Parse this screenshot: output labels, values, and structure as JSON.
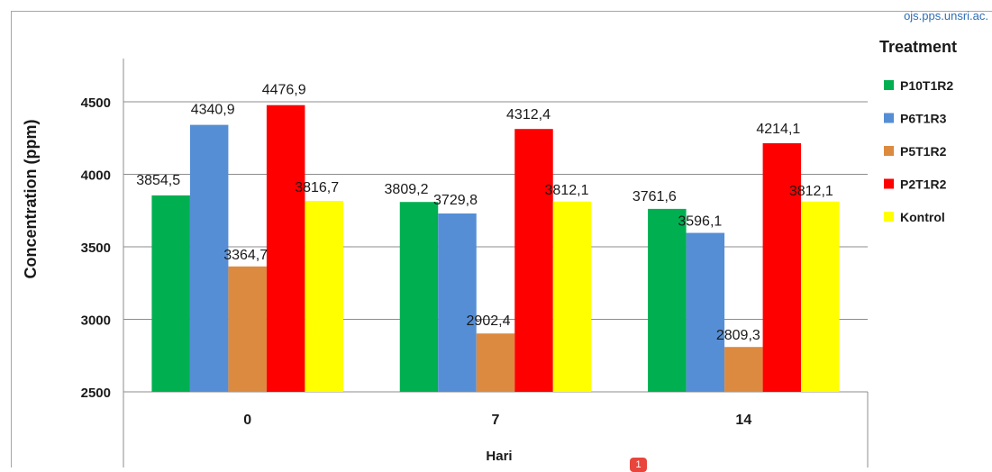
{
  "watermark": "ojs.pps.unsri.ac.",
  "badge": "1",
  "chart_data": {
    "type": "bar",
    "categories": [
      "0",
      "7",
      "14"
    ],
    "xlabel": "Hari",
    "ylabel": "Concentration (ppm)",
    "ylim": [
      2500,
      4500
    ],
    "yticks": [
      2500,
      3000,
      3500,
      4000,
      4500
    ],
    "grid": true,
    "legend_title": "Treatment",
    "legend_position": "right",
    "series": [
      {
        "name": "P10T1R2",
        "color": "#00b050",
        "values": [
          3854.5,
          3809.2,
          3761.6
        ],
        "labels": [
          "3854,5",
          "3809,2",
          "3761,6"
        ]
      },
      {
        "name": "P6T1R3",
        "color": "#558ed5",
        "values": [
          4340.9,
          3729.8,
          3596.1
        ],
        "labels": [
          "4340,9",
          "3729,8",
          "3596,1"
        ]
      },
      {
        "name": "P5T1R2",
        "color": "#dc8a3f",
        "values": [
          3364.7,
          2902.4,
          2809.3
        ],
        "labels": [
          "3364,7",
          "2902,4",
          "2809,3"
        ]
      },
      {
        "name": "P2T1R2",
        "color": "#ff0000",
        "values": [
          4476.9,
          4312.4,
          4214.1
        ],
        "labels": [
          "4476,9",
          "4312,4",
          "4214,1"
        ]
      },
      {
        "name": "Kontrol",
        "color": "#ffff00",
        "values": [
          3816.7,
          3812.1,
          3812.1
        ],
        "labels": [
          "3816,7",
          "3812,1",
          "3812,1"
        ]
      }
    ]
  }
}
